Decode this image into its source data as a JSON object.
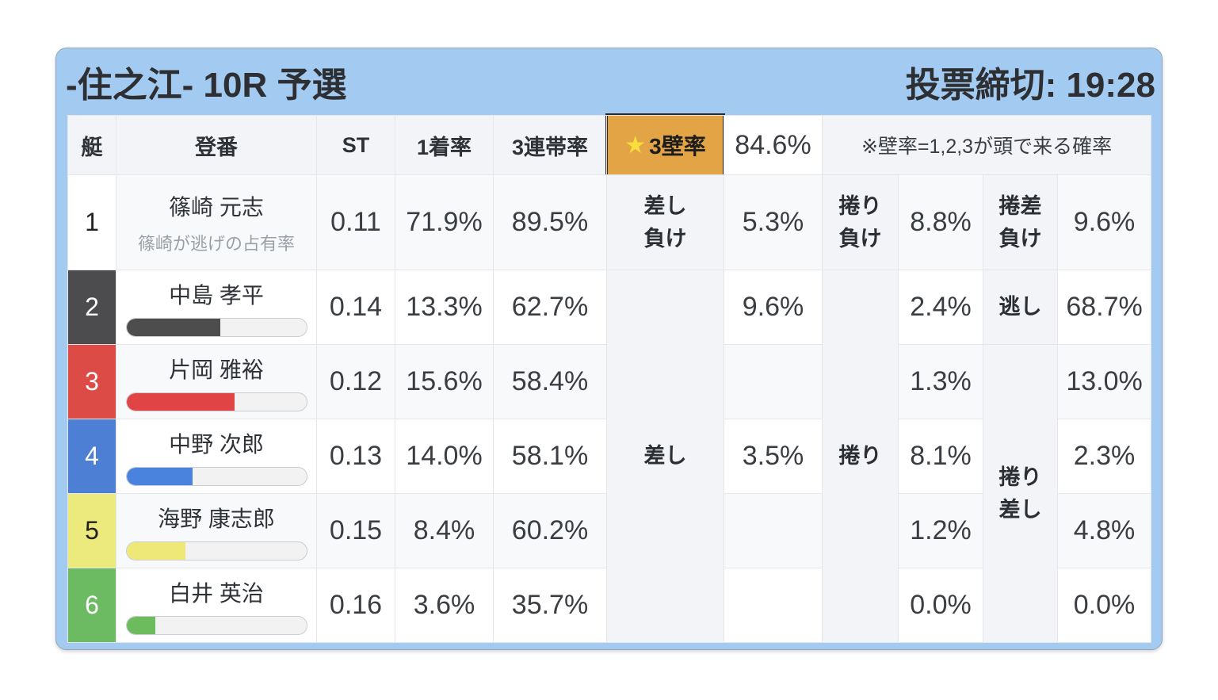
{
  "header": {
    "title": "-住之江- 10R 予選",
    "deadline": "投票締切: 19:28",
    "bg_color": "#a3cbf2"
  },
  "columns": {
    "boat": "艇",
    "racer": "登番",
    "st": "ST",
    "first_rate": "1着率",
    "top3_rate": "3連帯率"
  },
  "wall": {
    "star_icon": "★",
    "label": "3壁率",
    "value": "84.6%",
    "note": "※壁率=1,2,3が頭で来る確率",
    "bg_color": "#e2a444",
    "border_color": "#2b2b2b"
  },
  "rows": [
    {
      "boat": "1",
      "boat_bg": "#ffffff",
      "boat_text": "#222222",
      "name": "篠崎 元志",
      "sub": "篠崎が逃げの占有率",
      "st": "0.11",
      "first_rate": "71.9%",
      "top3_rate": "89.5%"
    },
    {
      "boat": "2",
      "boat_bg": "#4c4c4e",
      "boat_text": "#ffffff",
      "name": "中島 孝平",
      "bar_percent": 52,
      "bar_color": "#4d4d4e",
      "st": "0.14",
      "first_rate": "13.3%",
      "top3_rate": "62.7%"
    },
    {
      "boat": "3",
      "boat_bg": "#dd4b47",
      "boat_text": "#ffffff",
      "name": "片岡 雅裕",
      "bar_percent": 60,
      "bar_color": "#e04444",
      "st": "0.12",
      "first_rate": "15.6%",
      "top3_rate": "58.4%"
    },
    {
      "boat": "4",
      "boat_bg": "#4d80d5",
      "boat_text": "#ffffff",
      "name": "中野 次郎",
      "bar_percent": 37,
      "bar_color": "#4a83de",
      "st": "0.13",
      "first_rate": "14.0%",
      "top3_rate": "58.1%"
    },
    {
      "boat": "5",
      "boat_bg": "#ece97d",
      "boat_text": "#222222",
      "name": "海野 康志郎",
      "bar_percent": 33,
      "bar_color": "#eee878",
      "st": "0.15",
      "first_rate": "8.4%",
      "top3_rate": "60.2%"
    },
    {
      "boat": "6",
      "boat_bg": "#6cba62",
      "boat_text": "#ffffff",
      "name": "白井 英治",
      "bar_percent": 16,
      "bar_color": "#6cbc5e",
      "st": "0.16",
      "first_rate": "3.6%",
      "top3_rate": "35.7%"
    }
  ],
  "outcomes": {
    "row1": {
      "sashi_make_label": "差し\n負け",
      "sashi_make_value": "5.3%",
      "makuri_make_label": "捲り\n負け",
      "makuri_make_value": "8.8%",
      "makurizashi_make_label": "捲差\n負け",
      "makurizashi_make_value": "9.6%"
    },
    "sashi": {
      "label": "差し",
      "r2": "9.6%",
      "r3": "",
      "r4": "3.5%",
      "r5": "",
      "r6": ""
    },
    "makuri": {
      "label": "捲り",
      "r2": "2.4%",
      "r3": "1.3%",
      "r4": "8.1%",
      "r5": "1.2%",
      "r6": "0.0%"
    },
    "third": {
      "nogashi_label": "逃し",
      "nogashi_value": "68.7%",
      "makurizashi_label": "捲り\n差し",
      "r3": "13.0%",
      "r4": "2.3%",
      "r5": "4.8%",
      "r6": "0.0%"
    }
  }
}
